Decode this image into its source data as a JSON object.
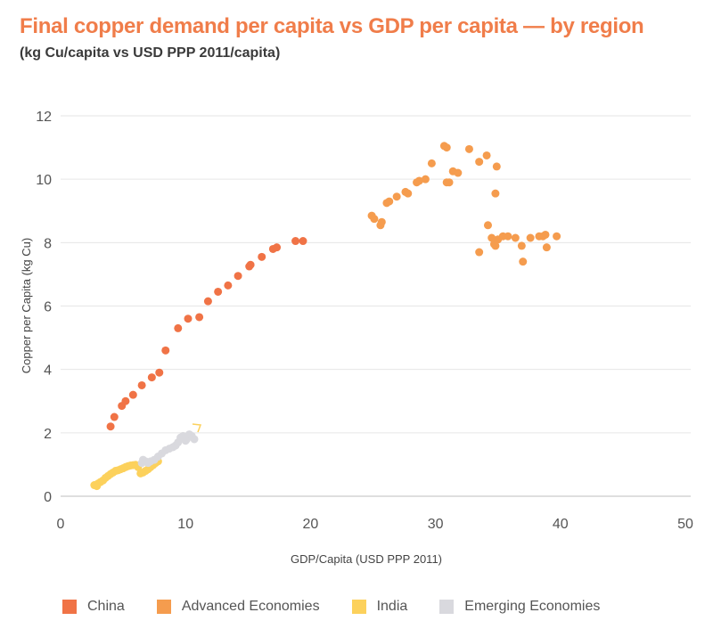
{
  "title": "Final copper demand per capita vs GDP per capita — by region",
  "subtitle": "(kg Cu/capita vs USD PPP 2011/capita)",
  "chart_data": {
    "type": "scatter",
    "xlabel": "GDP/Capita (USD PPP 2011)",
    "ylabel": "Copper per Capita (kg Cu)",
    "xlim": [
      0,
      50
    ],
    "ylim": [
      0,
      12
    ],
    "xticks": [
      0,
      10,
      20,
      30,
      40,
      50
    ],
    "yticks": [
      0,
      2,
      4,
      6,
      8,
      10,
      12
    ],
    "grid": "horizontal",
    "legend_position": "bottom",
    "series": [
      {
        "name": "China",
        "color": "#f07346",
        "points": [
          [
            4.0,
            2.2
          ],
          [
            4.3,
            2.5
          ],
          [
            4.9,
            2.85
          ],
          [
            5.2,
            3.0
          ],
          [
            5.8,
            3.2
          ],
          [
            6.5,
            3.5
          ],
          [
            7.3,
            3.75
          ],
          [
            7.9,
            3.9
          ],
          [
            8.4,
            4.6
          ],
          [
            9.4,
            5.3
          ],
          [
            10.2,
            5.6
          ],
          [
            11.1,
            5.65
          ],
          [
            11.8,
            6.15
          ],
          [
            12.6,
            6.45
          ],
          [
            13.4,
            6.65
          ],
          [
            14.2,
            6.95
          ],
          [
            15.1,
            7.25
          ],
          [
            15.2,
            7.3
          ],
          [
            16.1,
            7.55
          ],
          [
            17.0,
            7.8
          ],
          [
            17.3,
            7.85
          ],
          [
            18.8,
            8.05
          ],
          [
            19.4,
            8.05
          ]
        ]
      },
      {
        "name": "Advanced Economies",
        "color": "#f59c4e",
        "points": [
          [
            24.9,
            8.85
          ],
          [
            25.1,
            8.75
          ],
          [
            25.6,
            8.55
          ],
          [
            25.7,
            8.65
          ],
          [
            26.1,
            9.25
          ],
          [
            26.3,
            9.3
          ],
          [
            26.9,
            9.45
          ],
          [
            27.6,
            9.6
          ],
          [
            27.8,
            9.55
          ],
          [
            28.5,
            9.9
          ],
          [
            28.7,
            9.95
          ],
          [
            29.2,
            10.0
          ],
          [
            29.7,
            10.5
          ],
          [
            30.7,
            11.05
          ],
          [
            30.9,
            11.0
          ],
          [
            30.9,
            9.9
          ],
          [
            31.1,
            9.9
          ],
          [
            31.4,
            10.25
          ],
          [
            31.8,
            10.2
          ],
          [
            32.7,
            10.95
          ],
          [
            33.5,
            10.55
          ],
          [
            34.1,
            10.75
          ],
          [
            34.2,
            8.55
          ],
          [
            34.5,
            8.15
          ],
          [
            34.7,
            7.95
          ],
          [
            34.8,
            7.9
          ],
          [
            34.8,
            9.55
          ],
          [
            34.9,
            10.4
          ],
          [
            35.0,
            8.1
          ],
          [
            35.4,
            8.2
          ],
          [
            35.8,
            8.2
          ],
          [
            36.4,
            8.15
          ],
          [
            33.5,
            7.7
          ],
          [
            36.9,
            7.9
          ],
          [
            37.0,
            7.4
          ],
          [
            37.6,
            8.15
          ],
          [
            38.3,
            8.2
          ],
          [
            38.6,
            8.2
          ],
          [
            38.8,
            8.25
          ],
          [
            38.9,
            7.85
          ],
          [
            39.7,
            8.2
          ]
        ]
      },
      {
        "name": "India",
        "color": "#fcd15c",
        "points": [
          [
            2.7,
            0.35
          ],
          [
            2.9,
            0.32
          ],
          [
            3.0,
            0.4
          ],
          [
            3.2,
            0.45
          ],
          [
            3.4,
            0.5
          ],
          [
            3.6,
            0.58
          ],
          [
            3.8,
            0.64
          ],
          [
            4.0,
            0.7
          ],
          [
            4.2,
            0.75
          ],
          [
            4.4,
            0.8
          ],
          [
            4.6,
            0.82
          ],
          [
            4.8,
            0.85
          ],
          [
            5.0,
            0.88
          ],
          [
            5.2,
            0.92
          ],
          [
            5.4,
            0.95
          ],
          [
            5.6,
            0.97
          ],
          [
            5.8,
            0.98
          ],
          [
            6.0,
            0.99
          ],
          [
            6.2,
            0.92
          ],
          [
            6.4,
            0.72
          ],
          [
            6.6,
            0.75
          ],
          [
            6.8,
            0.8
          ],
          [
            7.0,
            0.85
          ],
          [
            7.2,
            0.92
          ],
          [
            7.4,
            0.98
          ],
          [
            7.6,
            1.05
          ],
          [
            7.8,
            1.1
          ]
        ]
      },
      {
        "name": "Emerging Economies",
        "color": "#d9d9de",
        "points": [
          [
            6.5,
            1.05
          ],
          [
            6.6,
            1.15
          ],
          [
            6.8,
            1.1
          ],
          [
            7.0,
            1.05
          ],
          [
            7.2,
            1.1
          ],
          [
            7.5,
            1.15
          ],
          [
            7.8,
            1.25
          ],
          [
            8.1,
            1.35
          ],
          [
            8.4,
            1.45
          ],
          [
            8.7,
            1.5
          ],
          [
            9.0,
            1.55
          ],
          [
            9.2,
            1.6
          ],
          [
            9.4,
            1.7
          ],
          [
            9.6,
            1.85
          ],
          [
            9.8,
            1.9
          ],
          [
            10.0,
            1.75
          ],
          [
            10.1,
            1.8
          ],
          [
            10.3,
            1.95
          ],
          [
            10.5,
            1.9
          ],
          [
            10.7,
            1.8
          ]
        ]
      }
    ]
  }
}
